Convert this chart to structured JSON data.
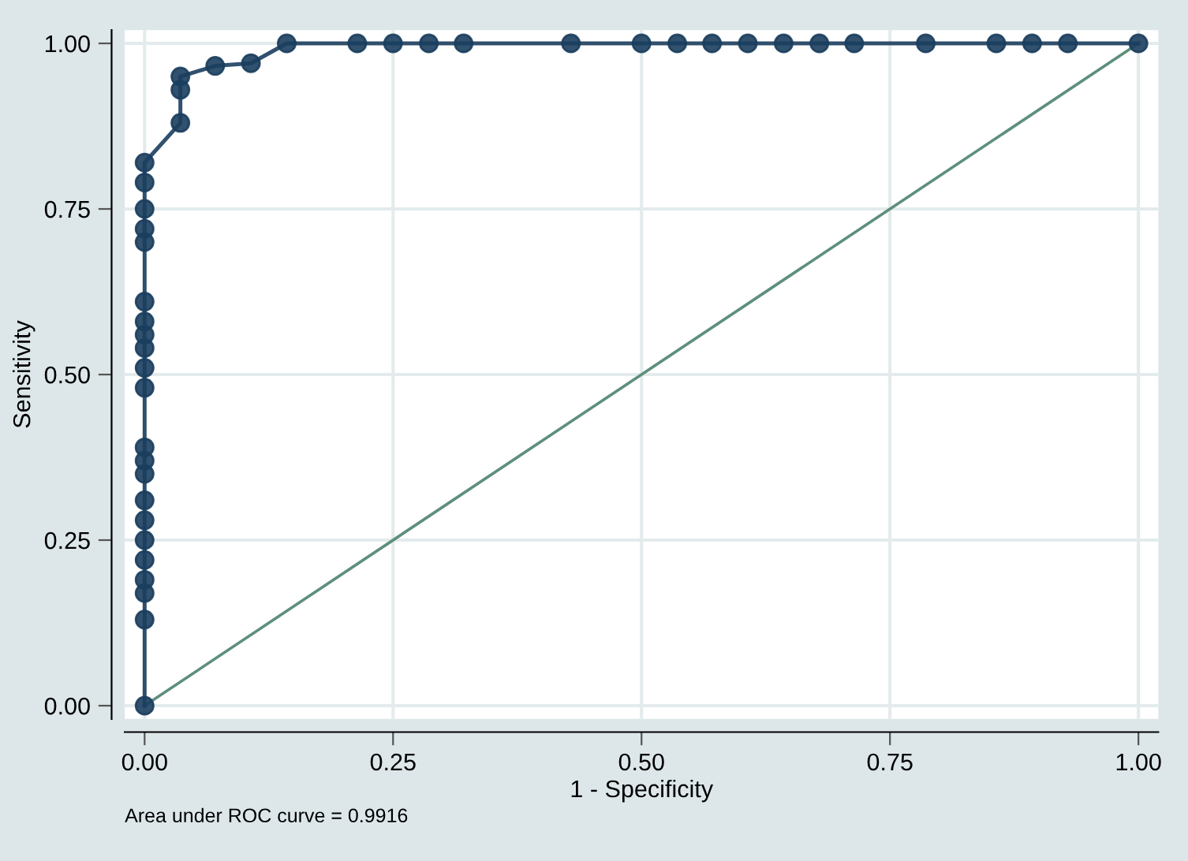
{
  "chart_data": {
    "type": "line",
    "xlabel": "1 - Specificity",
    "ylabel": "Sensitivity",
    "xlim": [
      -0.02,
      1.02
    ],
    "ylim": [
      -0.02,
      1.02
    ],
    "xticks": [
      {
        "value": 0,
        "label": "0.00"
      },
      {
        "value": 0.25,
        "label": "0.25"
      },
      {
        "value": 0.5,
        "label": "0.50"
      },
      {
        "value": 0.75,
        "label": "0.75"
      },
      {
        "value": 1,
        "label": "1.00"
      }
    ],
    "yticks": [
      {
        "value": 0,
        "label": "0.00"
      },
      {
        "value": 0.25,
        "label": "0.25"
      },
      {
        "value": 0.5,
        "label": "0.50"
      },
      {
        "value": 0.75,
        "label": "0.75"
      },
      {
        "value": 1,
        "label": "1.00"
      }
    ],
    "grid": true,
    "line_style": "solid",
    "series": [
      {
        "color": "#1b3e5e",
        "marker": "circle",
        "x": [
          0,
          0,
          0,
          0,
          0,
          0,
          0,
          0,
          0,
          0,
          0,
          0,
          0,
          0,
          0,
          0,
          0,
          0,
          0,
          0,
          0,
          0,
          0.036,
          0.036,
          0.036,
          0.071,
          0.107,
          0.143,
          0.214,
          0.25,
          0.286,
          0.321,
          0.429,
          0.5,
          0.536,
          0.571,
          0.607,
          0.643,
          0.679,
          0.714,
          0.786,
          0.857,
          0.893,
          0.929,
          1.0
        ],
        "values": [
          0,
          0.13,
          0.17,
          0.19,
          0.22,
          0.25,
          0.28,
          0.31,
          0.35,
          0.37,
          0.39,
          0.48,
          0.51,
          0.54,
          0.56,
          0.58,
          0.61,
          0.7,
          0.72,
          0.75,
          0.79,
          0.82,
          0.88,
          0.93,
          0.95,
          0.966,
          0.97,
          1,
          1,
          1,
          1,
          1,
          1,
          1,
          1,
          1,
          1,
          1,
          1,
          1,
          1,
          1,
          1,
          1,
          1
        ]
      },
      {
        "color": "#5e8f7c",
        "marker": "none",
        "x": [
          0,
          1
        ],
        "values": [
          0,
          1
        ]
      }
    ],
    "annotations": [
      "Area under ROC curve = 0.9916"
    ]
  }
}
